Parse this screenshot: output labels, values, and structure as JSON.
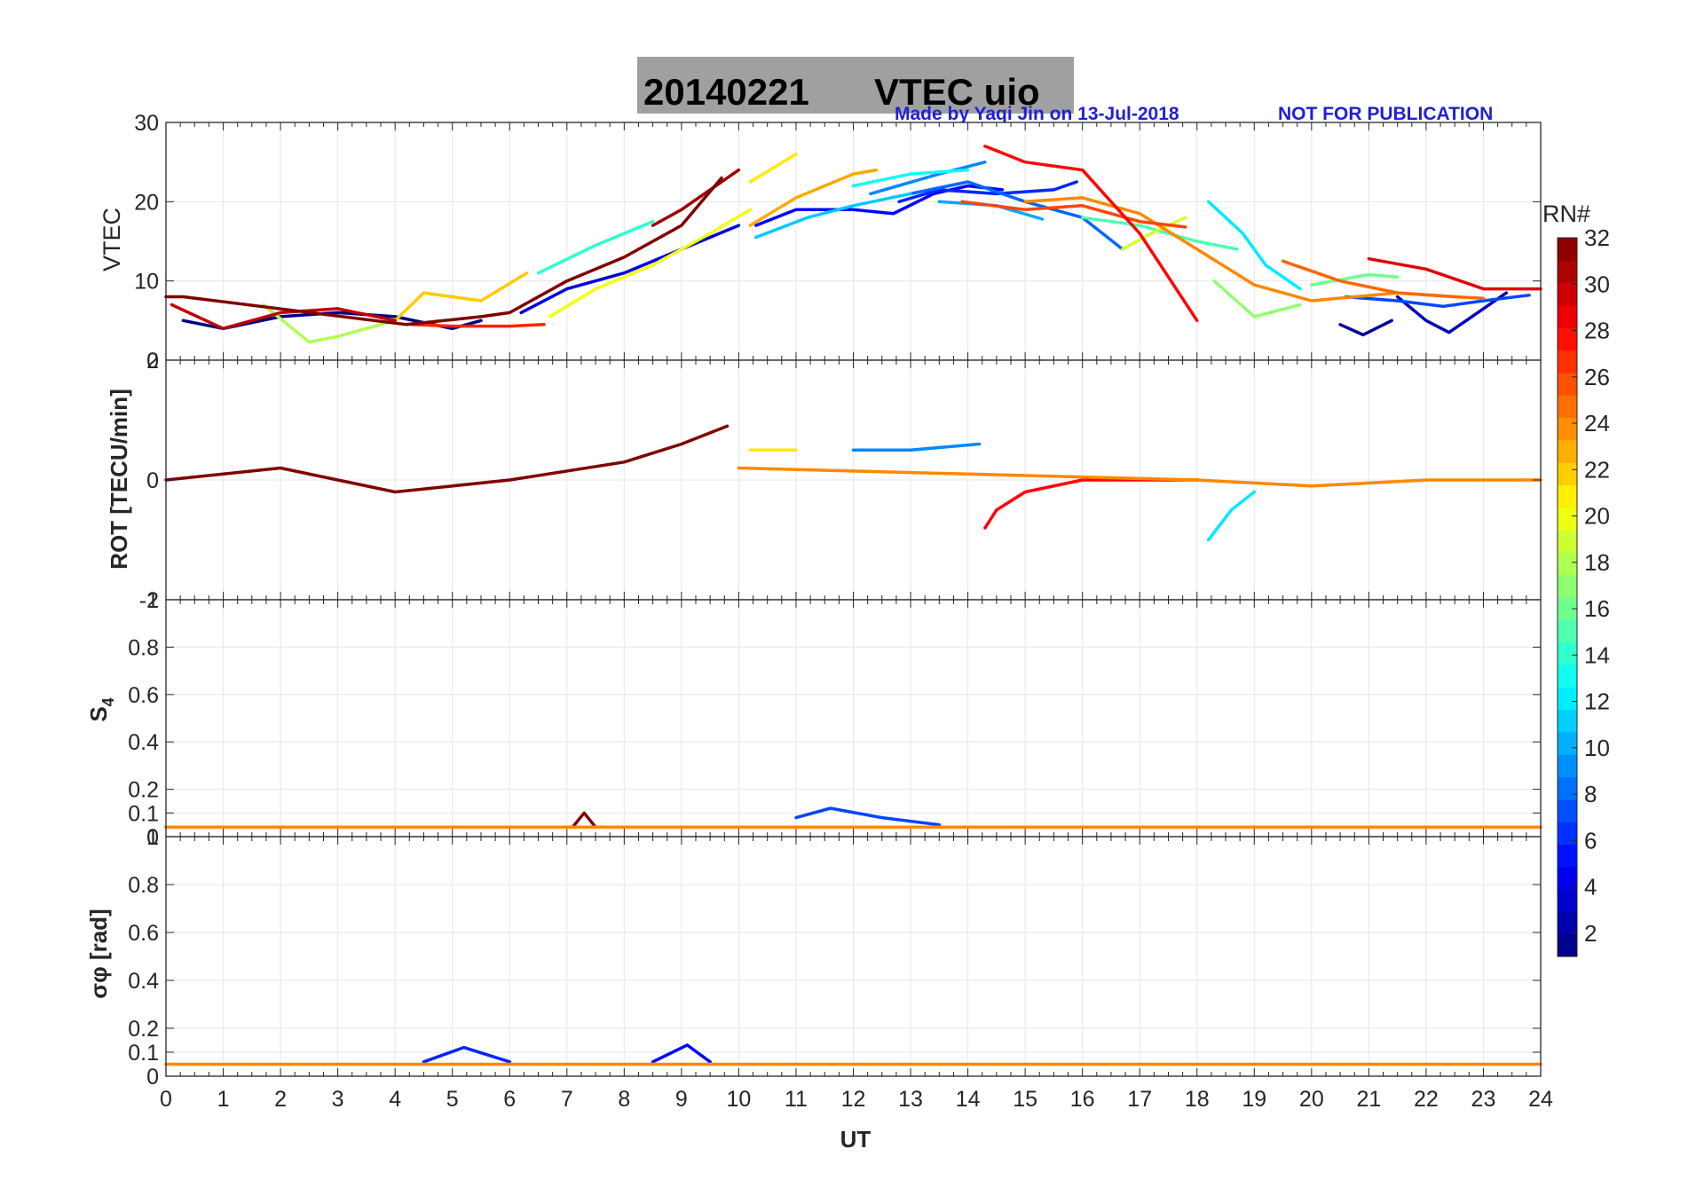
{
  "figure": {
    "title_date": "20140221",
    "title_main": "VTEC  uio",
    "credit": "Made by Yaqi Jin on 13-Jul-2018",
    "notice": "NOT FOR PUBLICATION",
    "title_bg": "#a0a0a0",
    "credit_color": "#1f1fd8"
  },
  "chart_data": [
    {
      "type": "line",
      "id": "vtec",
      "ylabel": "VTEC",
      "xlim": [
        0,
        24
      ],
      "ylim": [
        0,
        30
      ],
      "yticks": [
        0,
        10,
        20,
        30
      ],
      "yticklabels": [
        "0",
        "10",
        "20",
        "30"
      ],
      "grid": true,
      "series": [
        {
          "prn": 1,
          "x": [
            0.3,
            1,
            2,
            3,
            4,
            5,
            5.5
          ],
          "y": [
            5,
            4,
            5.5,
            6,
            5.5,
            4,
            5
          ]
        },
        {
          "prn": 2,
          "x": [
            20.5,
            20.9,
            21.4
          ],
          "y": [
            4.5,
            3.2,
            5
          ]
        },
        {
          "prn": 3,
          "x": [
            21.5,
            22,
            22.4,
            22.9,
            23.4
          ],
          "y": [
            8,
            5,
            3.5,
            6,
            8.5
          ]
        },
        {
          "prn": 4,
          "x": [
            6.2,
            7,
            8,
            9,
            10
          ],
          "y": [
            6,
            9,
            11,
            14,
            17
          ]
        },
        {
          "prn": 5,
          "x": [
            10.3,
            11,
            12,
            12.7,
            13.4,
            14,
            14.6
          ],
          "y": [
            17,
            19,
            19,
            18.5,
            21,
            22,
            21.5
          ]
        },
        {
          "prn": 6,
          "x": [
            12.8,
            13.5,
            14.5,
            15.5,
            15.9
          ],
          "y": [
            20,
            21.5,
            21,
            21.5,
            22.5
          ]
        },
        {
          "prn": 7,
          "x": [
            20.6,
            21.5,
            22.3,
            23,
            23.8
          ],
          "y": [
            8,
            7.5,
            6.8,
            7.5,
            8.2
          ]
        },
        {
          "prn": 8,
          "x": [
            13,
            14,
            15,
            16,
            16.7
          ],
          "y": [
            21,
            22.5,
            20,
            18,
            14
          ]
        },
        {
          "prn": 9,
          "x": [
            12.3,
            13.5,
            14.3
          ],
          "y": [
            21,
            23.5,
            25
          ]
        },
        {
          "prn": 10,
          "x": [
            13.5,
            14.5,
            15.3
          ],
          "y": [
            20,
            19.5,
            17.8
          ]
        },
        {
          "prn": 11,
          "x": [
            10.3,
            11.2,
            12,
            13
          ],
          "y": [
            15.5,
            18,
            19.5,
            21
          ]
        },
        {
          "prn": 12,
          "x": [
            18.2,
            18.8,
            19.2,
            19.8
          ],
          "y": [
            20,
            16,
            12,
            9
          ]
        },
        {
          "prn": 13,
          "x": [
            12,
            13,
            14
          ],
          "y": [
            22,
            23.5,
            24
          ]
        },
        {
          "prn": 14,
          "x": [
            6.5,
            7.5,
            8.5
          ],
          "y": [
            11,
            14.5,
            17.5
          ]
        },
        {
          "prn": 15,
          "x": [
            16,
            17,
            18,
            18.7
          ],
          "y": [
            18,
            17,
            15,
            14
          ]
        },
        {
          "prn": 16,
          "x": [
            20,
            21,
            21.5
          ],
          "y": [
            9.5,
            10.8,
            10.5
          ]
        },
        {
          "prn": 17,
          "x": [
            18.3,
            19,
            19.8
          ],
          "y": [
            10,
            5.5,
            7
          ]
        },
        {
          "prn": 18,
          "x": [
            1.7,
            2.5,
            3,
            4
          ],
          "y": [
            7,
            2.3,
            3,
            5
          ]
        },
        {
          "prn": 19,
          "x": [
            16.7,
            17.2,
            17.8
          ],
          "y": [
            14,
            16,
            18
          ]
        },
        {
          "prn": 20,
          "x": [
            6.7,
            7.5,
            8.5,
            9.5,
            10.2
          ],
          "y": [
            5.5,
            9,
            12,
            16,
            19
          ]
        },
        {
          "prn": 21,
          "x": [
            10.2,
            11
          ],
          "y": [
            22.5,
            26
          ]
        },
        {
          "prn": 22,
          "x": [
            4,
            4.5,
            5.5,
            6.3
          ],
          "y": [
            5,
            8.5,
            7.5,
            11
          ]
        },
        {
          "prn": 23,
          "x": [
            10.2,
            11,
            12,
            12.4
          ],
          "y": [
            17,
            20.5,
            23.5,
            24
          ]
        },
        {
          "prn": 24,
          "x": [
            15,
            16,
            17,
            18,
            19,
            20,
            21.5,
            22.5
          ],
          "y": [
            20,
            20.5,
            18.5,
            14,
            9.5,
            7.5,
            8.5,
            8
          ]
        },
        {
          "prn": 25,
          "x": [
            19.5,
            20.5,
            21.5,
            22.5,
            23
          ],
          "y": [
            12.5,
            10,
            8.5,
            8,
            7.8
          ]
        },
        {
          "prn": 26,
          "x": [
            13.9,
            15,
            16,
            17,
            17.8
          ],
          "y": [
            20,
            19,
            19.5,
            17.5,
            16.8
          ]
        },
        {
          "prn": 27,
          "x": [
            4.3,
            5,
            6,
            6.6
          ],
          "y": [
            4.5,
            4.3,
            4.3,
            4.5
          ]
        },
        {
          "prn": 28,
          "x": [
            14.3,
            15,
            16,
            17,
            18
          ],
          "y": [
            27,
            25,
            24,
            16,
            5
          ]
        },
        {
          "prn": 29,
          "x": [
            21,
            22,
            23,
            24
          ],
          "y": [
            12.8,
            11.5,
            9,
            9
          ]
        },
        {
          "prn": 30,
          "x": [
            0.1,
            1,
            2,
            3,
            4
          ],
          "y": [
            7,
            4,
            6,
            6.5,
            5
          ]
        },
        {
          "prn": 31,
          "x": [
            8.5,
            9,
            10
          ],
          "y": [
            17,
            19,
            24
          ]
        },
        {
          "prn": 32,
          "x": [
            0,
            0.2,
            0.3,
            4.2,
            5.5,
            6,
            7,
            8,
            9,
            9.7
          ],
          "y": [
            8,
            8,
            8,
            4.5,
            5.5,
            6,
            10,
            13,
            17,
            23
          ]
        }
      ]
    },
    {
      "type": "line",
      "id": "rot",
      "ylabel": "ROT [TECU/min]",
      "xlim": [
        0,
        24
      ],
      "ylim": [
        -2,
        2
      ],
      "yticks": [
        -2,
        0,
        2
      ],
      "yticklabels": [
        "-2",
        "0",
        "2"
      ],
      "grid": true,
      "series": [
        {
          "prn": 32,
          "x": [
            0,
            2,
            4,
            6,
            8,
            9,
            9.8
          ],
          "y": [
            0,
            0.2,
            -0.2,
            0,
            0.3,
            0.6,
            0.9
          ]
        },
        {
          "prn": 28,
          "x": [
            14.3,
            14.5,
            15,
            16,
            18
          ],
          "y": [
            -0.8,
            -0.5,
            -0.2,
            0,
            0
          ]
        },
        {
          "prn": 12,
          "x": [
            18.2,
            18.6,
            19
          ],
          "y": [
            -1,
            -0.5,
            -0.2
          ]
        },
        {
          "prn": 21,
          "x": [
            10.2,
            10.6,
            11
          ],
          "y": [
            0.5,
            0.5,
            0.5
          ]
        },
        {
          "prn": 9,
          "x": [
            12,
            13,
            14.2
          ],
          "y": [
            0.5,
            0.5,
            0.6
          ]
        },
        {
          "prn": 24,
          "x": [
            10,
            14,
            18,
            20,
            22,
            24
          ],
          "y": [
            0.2,
            0.1,
            0,
            -0.1,
            0,
            0
          ]
        }
      ]
    },
    {
      "type": "line",
      "id": "s4",
      "ylabel": "S4",
      "xlim": [
        0,
        24
      ],
      "ylim": [
        0,
        1
      ],
      "yticks": [
        0,
        0.1,
        0.2,
        0.4,
        0.6,
        0.8,
        1
      ],
      "yticklabels": [
        "0",
        "0.1",
        "0.2",
        "0.4",
        "0.6",
        "0.8",
        "1"
      ],
      "grid": true,
      "series": [
        {
          "prn": 32,
          "x": [
            0,
            7.1,
            7.3,
            7.5,
            10,
            24
          ],
          "y": [
            0.04,
            0.04,
            0.1,
            0.04,
            0.04,
            0.04
          ]
        },
        {
          "prn": 7,
          "x": [
            11,
            11.6,
            12.5,
            13.5
          ],
          "y": [
            0.08,
            0.12,
            0.08,
            0.05
          ]
        },
        {
          "prn": 24,
          "x": [
            0,
            24
          ],
          "y": [
            0.04,
            0.04
          ]
        }
      ]
    },
    {
      "type": "line",
      "id": "sigma_phi",
      "ylabel": "σφ [rad]",
      "xlim": [
        0,
        24
      ],
      "ylim": [
        0,
        1
      ],
      "yticks": [
        0,
        0.1,
        0.2,
        0.4,
        0.6,
        0.8,
        1
      ],
      "yticklabels": [
        "0",
        "0.1",
        "0.2",
        "0.4",
        "0.6",
        "0.8",
        "1"
      ],
      "xticks": [
        0,
        1,
        2,
        3,
        4,
        5,
        6,
        7,
        8,
        9,
        10,
        11,
        12,
        13,
        14,
        15,
        16,
        17,
        18,
        19,
        20,
        21,
        22,
        23,
        24
      ],
      "xticklabels": [
        "0",
        "1",
        "2",
        "3",
        "4",
        "5",
        "6",
        "7",
        "8",
        "9",
        "10",
        "11",
        "12",
        "13",
        "14",
        "15",
        "16",
        "17",
        "18",
        "19",
        "20",
        "21",
        "22",
        "23",
        "24"
      ],
      "xlabel": "UT",
      "grid": true,
      "series": [
        {
          "prn": 6,
          "x": [
            4.5,
            5.2,
            6
          ],
          "y": [
            0.06,
            0.12,
            0.06
          ]
        },
        {
          "prn": 5,
          "x": [
            8.5,
            9.1,
            9.5
          ],
          "y": [
            0.06,
            0.13,
            0.06
          ]
        },
        {
          "prn": 24,
          "x": [
            0,
            24
          ],
          "y": [
            0.05,
            0.05
          ]
        }
      ]
    }
  ],
  "colorbar": {
    "title": "PRN#",
    "ticks": [
      2,
      4,
      6,
      8,
      10,
      12,
      14,
      16,
      18,
      20,
      22,
      24,
      26,
      28,
      30,
      32
    ],
    "ticklabels": [
      "2",
      "4",
      "6",
      "8",
      "10",
      "12",
      "14",
      "16",
      "18",
      "20",
      "22",
      "24",
      "26",
      "28",
      "30",
      "32"
    ],
    "range": [
      1,
      32
    ],
    "colormap": "jet"
  }
}
